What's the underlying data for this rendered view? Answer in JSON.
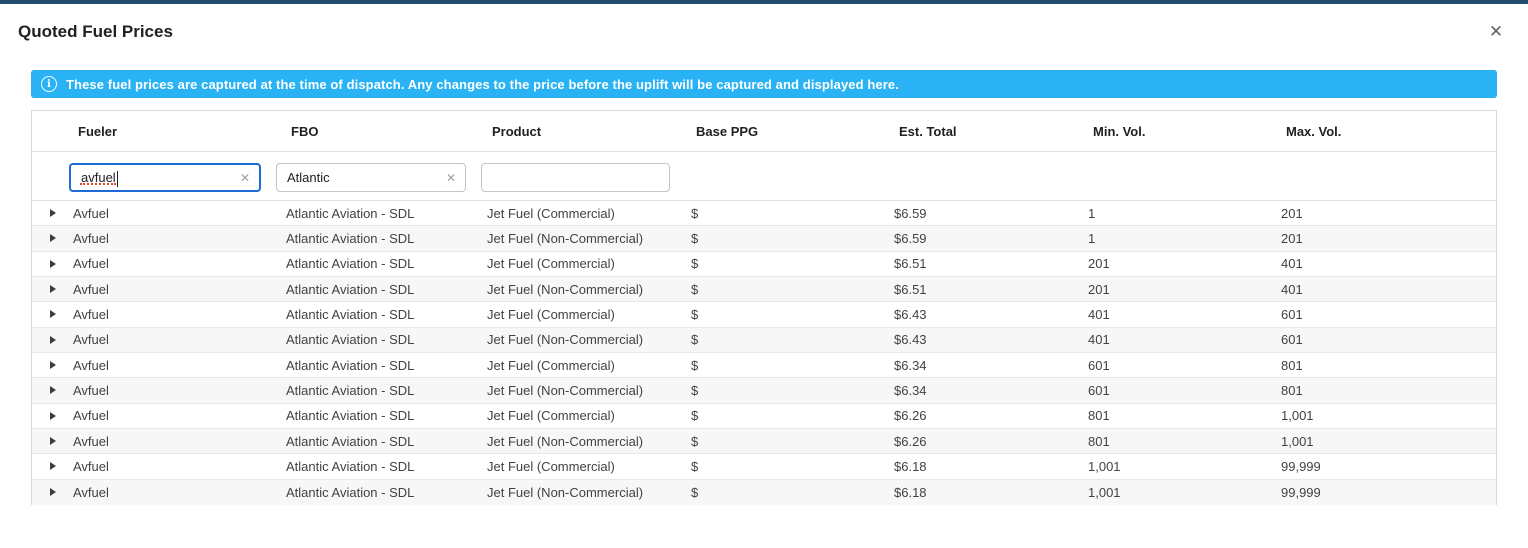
{
  "window": {
    "title": "Quoted Fuel Prices",
    "close_icon": "✕"
  },
  "banner": {
    "icon": "info-circle",
    "text": "These fuel prices are captured at the time of dispatch. Any changes to the price before the uplift will be captured and displayed here.",
    "bg_color": "#29b2f4",
    "text_color": "#ffffff"
  },
  "table": {
    "columns": [
      "Fueler",
      "FBO",
      "Product",
      "Base PPG",
      "Est. Total",
      "Min. Vol.",
      "Max. Vol."
    ],
    "filters": {
      "fueler": {
        "value": "avfuel",
        "placeholder": "",
        "focused": true,
        "clear_icon": "✕"
      },
      "fbo": {
        "value": "Atlantic",
        "placeholder": "",
        "focused": false,
        "clear_icon": "✕"
      },
      "product": {
        "value": "",
        "placeholder": "",
        "focused": false
      }
    },
    "rows": [
      {
        "fueler": "Avfuel",
        "fbo": "Atlantic Aviation - SDL",
        "product": "Jet Fuel (Commercial)",
        "base_ppg": "$",
        "est_total": "$6.59",
        "min_vol": "1",
        "max_vol": "201"
      },
      {
        "fueler": "Avfuel",
        "fbo": "Atlantic Aviation - SDL",
        "product": "Jet Fuel (Non-Commercial)",
        "base_ppg": "$",
        "est_total": "$6.59",
        "min_vol": "1",
        "max_vol": "201"
      },
      {
        "fueler": "Avfuel",
        "fbo": "Atlantic Aviation - SDL",
        "product": "Jet Fuel (Commercial)",
        "base_ppg": "$",
        "est_total": "$6.51",
        "min_vol": "201",
        "max_vol": "401"
      },
      {
        "fueler": "Avfuel",
        "fbo": "Atlantic Aviation - SDL",
        "product": "Jet Fuel (Non-Commercial)",
        "base_ppg": "$",
        "est_total": "$6.51",
        "min_vol": "201",
        "max_vol": "401"
      },
      {
        "fueler": "Avfuel",
        "fbo": "Atlantic Aviation - SDL",
        "product": "Jet Fuel (Commercial)",
        "base_ppg": "$",
        "est_total": "$6.43",
        "min_vol": "401",
        "max_vol": "601"
      },
      {
        "fueler": "Avfuel",
        "fbo": "Atlantic Aviation - SDL",
        "product": "Jet Fuel (Non-Commercial)",
        "base_ppg": "$",
        "est_total": "$6.43",
        "min_vol": "401",
        "max_vol": "601"
      },
      {
        "fueler": "Avfuel",
        "fbo": "Atlantic Aviation - SDL",
        "product": "Jet Fuel (Commercial)",
        "base_ppg": "$",
        "est_total": "$6.34",
        "min_vol": "601",
        "max_vol": "801"
      },
      {
        "fueler": "Avfuel",
        "fbo": "Atlantic Aviation - SDL",
        "product": "Jet Fuel (Non-Commercial)",
        "base_ppg": "$",
        "est_total": "$6.34",
        "min_vol": "601",
        "max_vol": "801"
      },
      {
        "fueler": "Avfuel",
        "fbo": "Atlantic Aviation - SDL",
        "product": "Jet Fuel (Commercial)",
        "base_ppg": "$",
        "est_total": "$6.26",
        "min_vol": "801",
        "max_vol": "1,001"
      },
      {
        "fueler": "Avfuel",
        "fbo": "Atlantic Aviation - SDL",
        "product": "Jet Fuel (Non-Commercial)",
        "base_ppg": "$",
        "est_total": "$6.26",
        "min_vol": "801",
        "max_vol": "1,001"
      },
      {
        "fueler": "Avfuel",
        "fbo": "Atlantic Aviation - SDL",
        "product": "Jet Fuel (Commercial)",
        "base_ppg": "$",
        "est_total": "$6.18",
        "min_vol": "1,001",
        "max_vol": "99,999"
      },
      {
        "fueler": "Avfuel",
        "fbo": "Atlantic Aviation - SDL",
        "product": "Jet Fuel (Non-Commercial)",
        "base_ppg": "$",
        "est_total": "$6.18",
        "min_vol": "1,001",
        "max_vol": "99,999"
      }
    ]
  },
  "colors": {
    "top_strip": "#254a70",
    "banner_blue": "#29b2f4",
    "focus_border": "#1e6bd6",
    "row_stripe": "#f7f7f7",
    "grid_border": "#d9d9d9",
    "spellcheck_underline": "#e0442f"
  }
}
